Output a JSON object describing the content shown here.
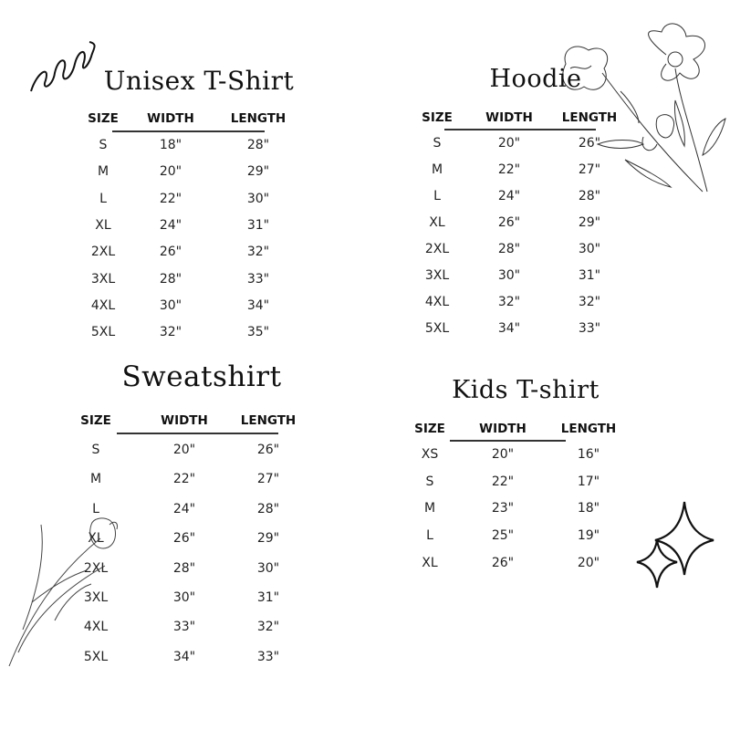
{
  "tables": [
    {
      "id": "unisex-tshirt",
      "title": "Unisex T-Shirt",
      "headers": [
        "SIZE",
        "WIDTH",
        "LENGTH"
      ],
      "rows": [
        [
          "S",
          "18\"",
          "28\""
        ],
        [
          "M",
          "20\"",
          "29\""
        ],
        [
          "L",
          "22\"",
          "30\""
        ],
        [
          "XL",
          "24\"",
          "31\""
        ],
        [
          "2XL",
          "26\"",
          "32\""
        ],
        [
          "3XL",
          "28\"",
          "33\""
        ],
        [
          "4XL",
          "30\"",
          "34\""
        ],
        [
          "5XL",
          "32\"",
          "35\""
        ]
      ]
    },
    {
      "id": "hoodie",
      "title": "Hoodie",
      "headers": [
        "SIZE",
        "WIDTH",
        "LENGTH"
      ],
      "rows": [
        [
          "S",
          "20\"",
          "26\""
        ],
        [
          "M",
          "22\"",
          "27\""
        ],
        [
          "L",
          "24\"",
          "28\""
        ],
        [
          "XL",
          "26\"",
          "29\""
        ],
        [
          "2XL",
          "28\"",
          "30\""
        ],
        [
          "3XL",
          "30\"",
          "31\""
        ],
        [
          "4XL",
          "32\"",
          "32\""
        ],
        [
          "5XL",
          "34\"",
          "33\""
        ]
      ]
    },
    {
      "id": "sweatshirt",
      "title": "Sweatshirt",
      "headers": [
        "SIZE",
        "WIDTH",
        "LENGTH"
      ],
      "rows": [
        [
          "S",
          "20\"",
          "26\""
        ],
        [
          "M",
          "22\"",
          "27\""
        ],
        [
          "L",
          "24\"",
          "28\""
        ],
        [
          "XL",
          "26\"",
          "29\""
        ],
        [
          "2XL",
          "28\"",
          "30\""
        ],
        [
          "3XL",
          "30\"",
          "31\""
        ],
        [
          "4XL",
          "33\"",
          "32\""
        ],
        [
          "5XL",
          "34\"",
          "33\""
        ]
      ]
    },
    {
      "id": "kids-tshirt",
      "title": "Kids T-shirt",
      "headers": [
        "SIZE",
        "WIDTH",
        "LENGTH"
      ],
      "rows": [
        [
          "XS",
          "20\"",
          "16\""
        ],
        [
          "S",
          "22\"",
          "17\""
        ],
        [
          "M",
          "23\"",
          "18\""
        ],
        [
          "L",
          "25\"",
          "19\""
        ],
        [
          "XL",
          "26\"",
          "20\""
        ]
      ]
    }
  ],
  "decorations": [
    "squiggle-icon",
    "flower-sketch-icon",
    "tulip-sketch-icon",
    "sparkle-icon"
  ],
  "colors": {
    "text": "#1a1a1a",
    "background": "#ffffff"
  }
}
